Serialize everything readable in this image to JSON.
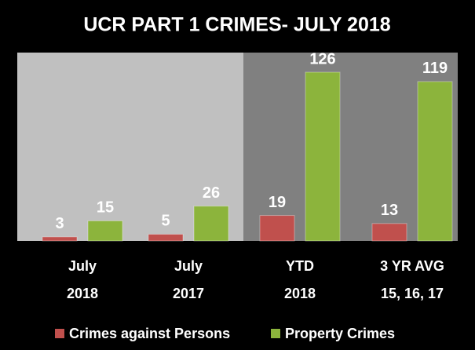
{
  "chart_data": {
    "type": "bar",
    "title": "UCR  PART 1 CRIMES- JULY 2018",
    "categories": [
      [
        "July",
        "2018"
      ],
      [
        "July",
        "2017"
      ],
      [
        "YTD",
        "2018"
      ],
      [
        "3 YR AVG",
        "15, 16, 17"
      ]
    ],
    "series": [
      {
        "name": "Crimes against Persons",
        "color": "#c0504d",
        "values": [
          3,
          5,
          19,
          13
        ]
      },
      {
        "name": "Property Crimes",
        "color": "#8cb43c",
        "values": [
          15,
          26,
          126,
          119
        ]
      }
    ]
  }
}
